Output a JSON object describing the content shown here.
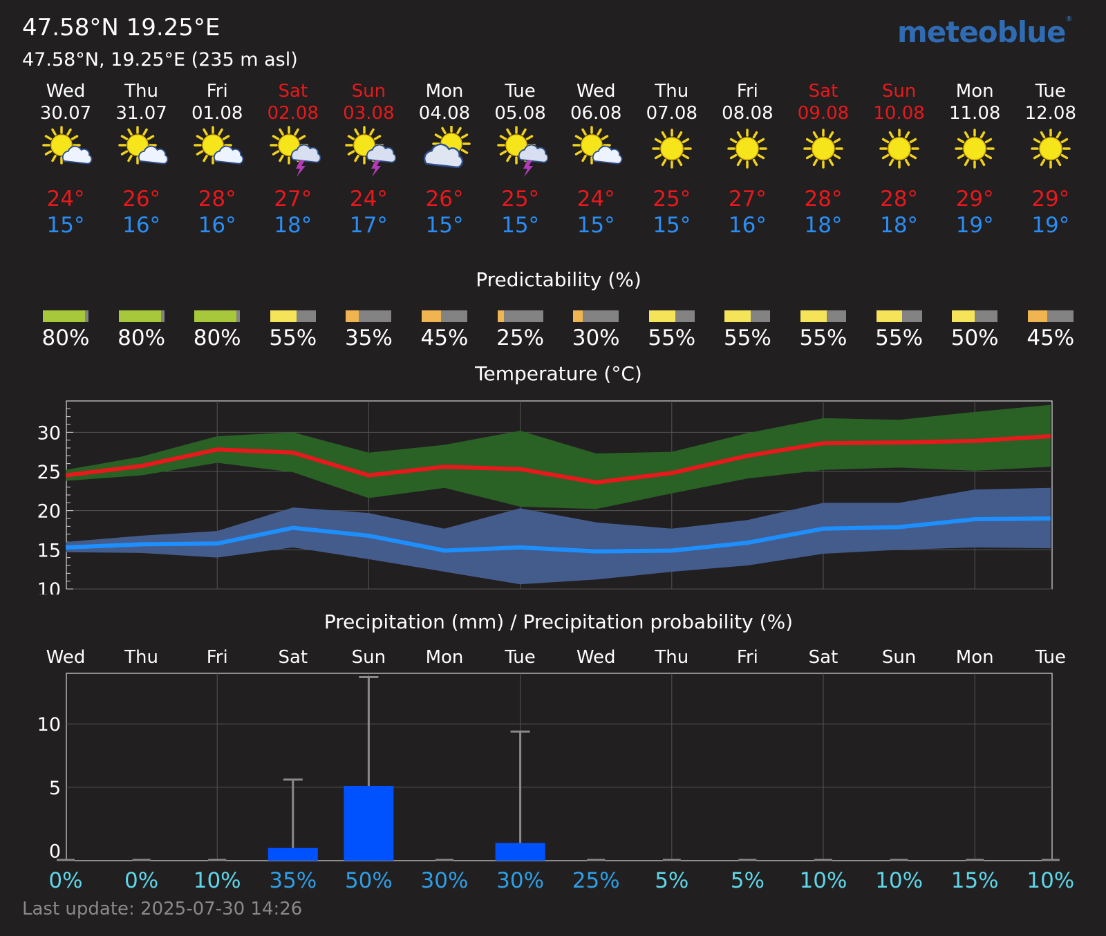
{
  "header": {
    "title": "47.58°N 19.25°E",
    "subtitle": "47.58°N, 19.25°E (235 m asl)",
    "brand": "meteoblue"
  },
  "days": [
    {
      "name": "Wed",
      "date": "30.07",
      "weekend": false,
      "icon": "sun-cloud-icon",
      "tmax": "24°",
      "tmin": "15°",
      "pred": "80%",
      "pred_value": 80,
      "pred_color": "#a8c83c",
      "precip_prob": "0%"
    },
    {
      "name": "Thu",
      "date": "31.07",
      "weekend": false,
      "icon": "sun-cloud-icon",
      "tmax": "26°",
      "tmin": "16°",
      "pred": "80%",
      "pred_value": 80,
      "pred_color": "#a8c83c",
      "precip_prob": "0%"
    },
    {
      "name": "Fri",
      "date": "01.08",
      "weekend": false,
      "icon": "sun-cloud-icon",
      "tmax": "28°",
      "tmin": "16°",
      "pred": "80%",
      "pred_value": 80,
      "pred_color": "#a8c83c",
      "precip_prob": "10%"
    },
    {
      "name": "Sat",
      "date": "02.08",
      "weekend": true,
      "icon": "sun-thunder-icon",
      "tmax": "27°",
      "tmin": "18°",
      "pred": "55%",
      "pred_value": 55,
      "pred_color": "#f5e45a",
      "precip_prob": "35%"
    },
    {
      "name": "Sun",
      "date": "03.08",
      "weekend": true,
      "icon": "sun-thunder-icon",
      "tmax": "24°",
      "tmin": "17°",
      "pred": "35%",
      "pred_value": 35,
      "pred_color": "#f0b550",
      "precip_prob": "50%"
    },
    {
      "name": "Mon",
      "date": "04.08",
      "weekend": false,
      "icon": "cloudy-sun-icon",
      "tmax": "26°",
      "tmin": "15°",
      "pred": "45%",
      "pred_value": 45,
      "pred_color": "#f0b550",
      "precip_prob": "30%"
    },
    {
      "name": "Tue",
      "date": "05.08",
      "weekend": false,
      "icon": "sun-thunder-icon",
      "tmax": "25°",
      "tmin": "15°",
      "pred": "25%",
      "pred_value": 25,
      "pred_color": "#f0b550",
      "precip_prob": "30%"
    },
    {
      "name": "Wed",
      "date": "06.08",
      "weekend": false,
      "icon": "sun-cloud-icon",
      "tmax": "24°",
      "tmin": "15°",
      "pred": "30%",
      "pred_value": 30,
      "pred_color": "#f0b550",
      "precip_prob": "25%"
    },
    {
      "name": "Thu",
      "date": "07.08",
      "weekend": false,
      "icon": "sun-icon",
      "tmax": "25°",
      "tmin": "15°",
      "pred": "55%",
      "pred_value": 55,
      "pred_color": "#f5e45a",
      "precip_prob": "5%"
    },
    {
      "name": "Fri",
      "date": "08.08",
      "weekend": false,
      "icon": "sun-icon",
      "tmax": "27°",
      "tmin": "16°",
      "pred": "55%",
      "pred_value": 55,
      "pred_color": "#f5e45a",
      "precip_prob": "5%"
    },
    {
      "name": "Sat",
      "date": "09.08",
      "weekend": true,
      "icon": "sun-icon",
      "tmax": "28°",
      "tmin": "18°",
      "pred": "55%",
      "pred_value": 55,
      "pred_color": "#f5e45a",
      "precip_prob": "10%"
    },
    {
      "name": "Sun",
      "date": "10.08",
      "weekend": true,
      "icon": "sun-icon",
      "tmax": "28°",
      "tmin": "18°",
      "pred": "55%",
      "pred_value": 55,
      "pred_color": "#f5e45a",
      "precip_prob": "10%"
    },
    {
      "name": "Mon",
      "date": "11.08",
      "weekend": false,
      "icon": "sun-icon",
      "tmax": "29°",
      "tmin": "19°",
      "pred": "50%",
      "pred_value": 50,
      "pred_color": "#f5e45a",
      "precip_prob": "15%"
    },
    {
      "name": "Tue",
      "date": "12.08",
      "weekend": false,
      "icon": "sun-icon",
      "tmax": "29°",
      "tmin": "19°",
      "pred": "45%",
      "pred_value": 45,
      "pred_color": "#f0b550",
      "precip_prob": "10%"
    }
  ],
  "sections": {
    "predictability_title": "Predictability (%)",
    "temperature_title": "Temperature (°C)",
    "precip_title": "Precipitation (mm) / Precipitation probability (%)"
  },
  "colors": {
    "background": "#211f20",
    "tmax_line": "#e8191c",
    "tmin_line": "#1e8fff",
    "tmax_band": "#2a6125",
    "tmin_band": "#445c8c",
    "precip_bar": "#0052ff",
    "whisker": "#8a8a8a",
    "prob_text": "#3aa6e8"
  },
  "chart_data": [
    {
      "type": "line",
      "title": "Temperature (°C)",
      "x": [
        "30.07",
        "31.07",
        "01.08",
        "02.08",
        "03.08",
        "04.08",
        "05.08",
        "06.08",
        "07.08",
        "08.08",
        "09.08",
        "10.08",
        "11.08",
        "12.08"
      ],
      "ylim": [
        10,
        34
      ],
      "yticks": [
        10,
        15,
        20,
        25,
        30
      ],
      "grid": true,
      "series": [
        {
          "values": [
            24.5,
            25.7,
            27.8,
            27.4,
            24.5,
            25.6,
            25.3,
            23.6,
            24.8,
            27.0,
            28.6,
            28.7,
            28.9,
            29.5
          ]
        },
        {
          "values": [
            25.2,
            26.9,
            29.5,
            30.0,
            27.4,
            28.4,
            30.2,
            27.3,
            27.5,
            29.9,
            31.8,
            31.6,
            32.6,
            33.5
          ],
          "role": "max band upper"
        },
        {
          "values": [
            23.8,
            24.5,
            26.1,
            24.9,
            21.6,
            22.9,
            20.5,
            20.2,
            22.2,
            24.1,
            25.2,
            25.5,
            25.1,
            25.6
          ],
          "role": "max band lower"
        },
        {
          "values": [
            15.3,
            15.7,
            15.8,
            17.8,
            16.8,
            14.9,
            15.3,
            14.8,
            14.9,
            15.9,
            17.7,
            17.9,
            18.9,
            19.0
          ]
        },
        {
          "values": [
            16.0,
            16.8,
            17.4,
            20.4,
            19.7,
            17.7,
            20.3,
            18.5,
            17.7,
            18.8,
            21.0,
            21.0,
            22.7,
            22.9
          ],
          "role": "min band upper"
        },
        {
          "values": [
            14.7,
            14.6,
            14.0,
            15.3,
            13.8,
            12.2,
            10.6,
            11.2,
            12.2,
            13.0,
            14.5,
            15.0,
            15.3,
            15.2
          ],
          "role": "min band lower"
        }
      ]
    },
    {
      "type": "bar",
      "title": "Precipitation (mm) / Precipitation probability (%)",
      "categories": [
        "Wed",
        "Thu",
        "Fri",
        "Sat",
        "Sun",
        "Mon",
        "Tue",
        "Wed",
        "Thu",
        "Fri",
        "Sat",
        "Sun",
        "Mon",
        "Tue"
      ],
      "ylim": [
        -0.8,
        14
      ],
      "yticks": [
        0,
        5,
        10
      ],
      "grid": true,
      "series": [
        {
          "values": [
            0,
            0,
            0,
            0.2,
            5.1,
            0,
            0.6,
            0,
            0,
            0,
            0,
            0,
            0,
            0
          ]
        },
        {
          "values": [
            null,
            null,
            null,
            5.6,
            13.7,
            null,
            9.4,
            null,
            null,
            null,
            null,
            null,
            null,
            null
          ],
          "role": "upper whisker"
        }
      ],
      "probability": [
        "0%",
        "0%",
        "10%",
        "35%",
        "50%",
        "30%",
        "30%",
        "25%",
        "5%",
        "5%",
        "10%",
        "10%",
        "15%",
        "10%"
      ]
    }
  ],
  "footer": {
    "last_update": "Last update: 2025-07-30 14:26"
  }
}
